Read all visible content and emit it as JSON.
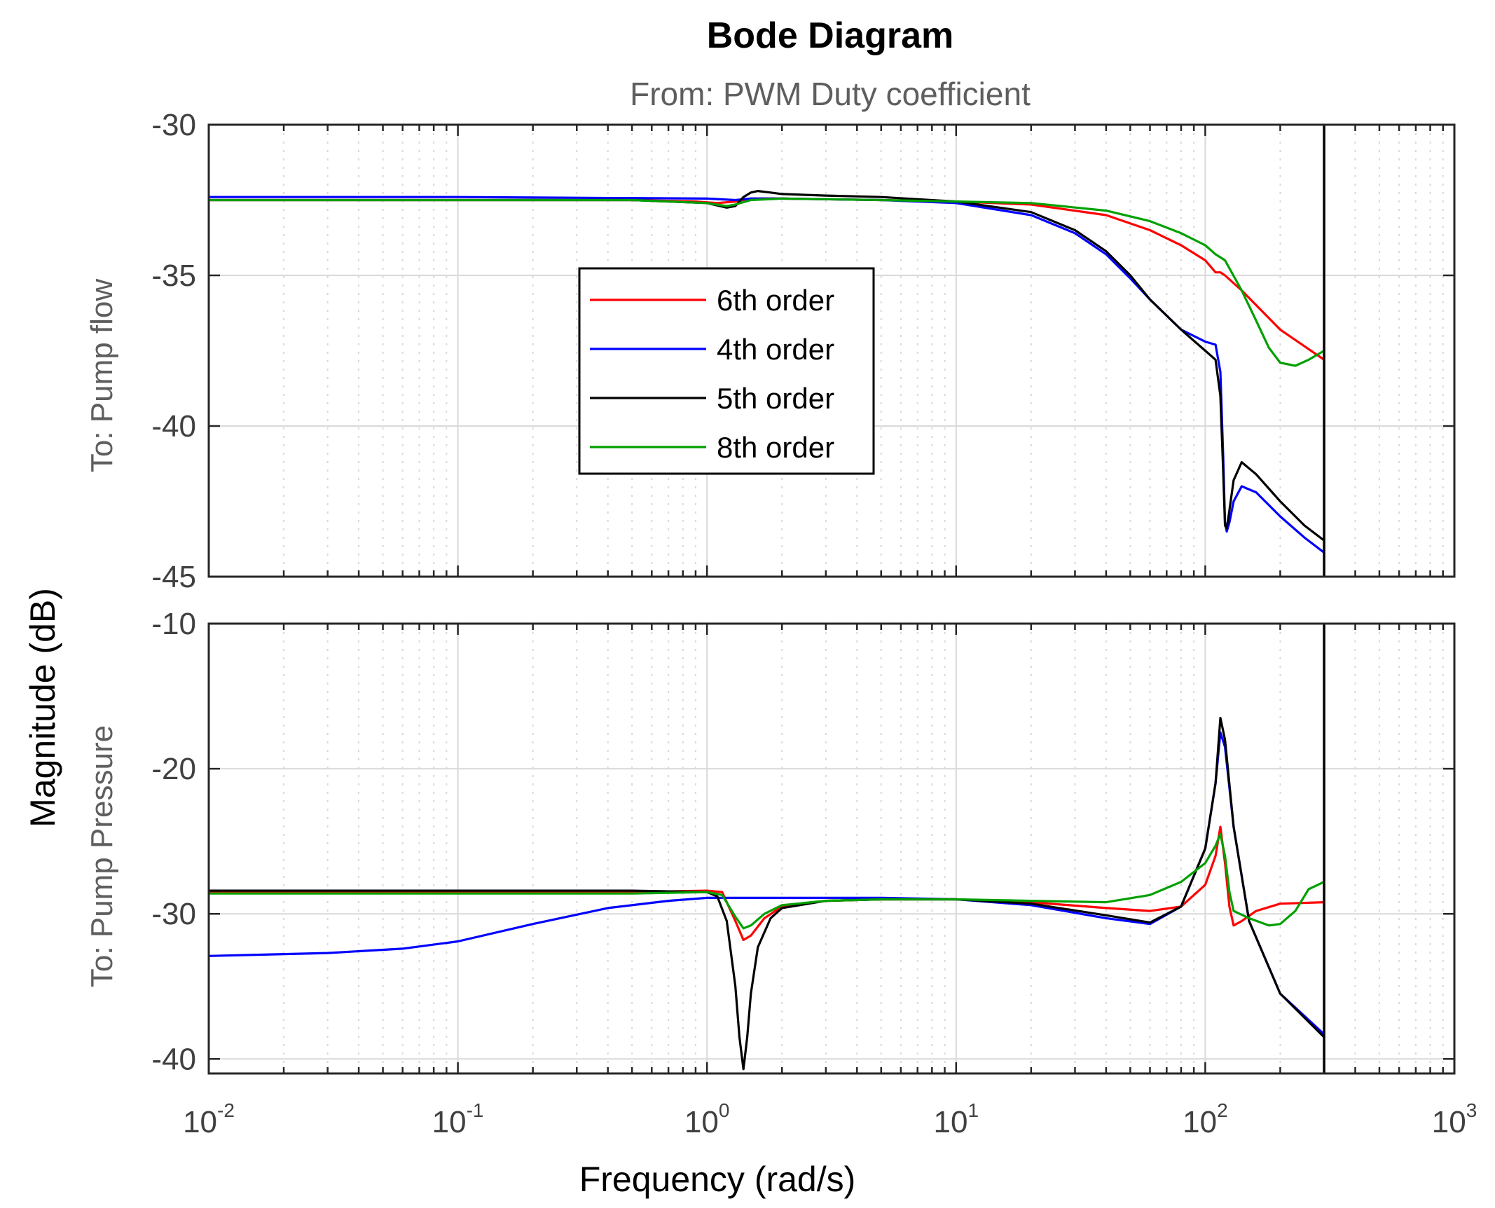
{
  "chart_data": {
    "type": "line",
    "title": "Bode Diagram",
    "subtitle": "From: PWM Duty coefficient",
    "xlabel": "Frequency  (rad/s)",
    "ylabel": "Magnitude (dB)",
    "xscale": "log",
    "xlim": [
      0.01,
      1000
    ],
    "x_ticks": [
      {
        "base": "10",
        "exp": "-2",
        "value": 0.01
      },
      {
        "base": "10",
        "exp": "-1",
        "value": 0.1
      },
      {
        "base": "10",
        "exp": "0",
        "value": 1
      },
      {
        "base": "10",
        "exp": "1",
        "value": 10
      },
      {
        "base": "10",
        "exp": "2",
        "value": 100
      },
      {
        "base": "10",
        "exp": "3",
        "value": 1000
      }
    ],
    "nyquist_frequency": 300,
    "grid": true,
    "legend": {
      "placement": "center-left of top panel",
      "entries": [
        {
          "label": "6th order",
          "color": "#ff0000"
        },
        {
          "label": "4th order",
          "color": "#0000ff"
        },
        {
          "label": "5th order",
          "color": "#000000"
        },
        {
          "label": "8th order",
          "color": "#00a000"
        }
      ]
    },
    "panels": [
      {
        "row_label": "To: Pump flow",
        "ylim": [
          -45,
          -30
        ],
        "y_ticks": [
          "-30",
          "-35",
          "-40",
          "-45"
        ],
        "series": [
          {
            "name": "6th order",
            "color": "#ff0000",
            "x": [
              0.01,
              0.1,
              0.5,
              0.9,
              1.1,
              1.3,
              1.5,
              2,
              5,
              10,
              20,
              40,
              60,
              80,
              100,
              110,
              115,
              120,
              140,
              200,
              300
            ],
            "y": [
              -32.5,
              -32.5,
              -32.5,
              -32.55,
              -32.6,
              -32.55,
              -32.45,
              -32.45,
              -32.5,
              -32.55,
              -32.65,
              -33.0,
              -33.5,
              -34.0,
              -34.5,
              -34.9,
              -34.9,
              -35.0,
              -35.5,
              -36.8,
              -37.8
            ]
          },
          {
            "name": "4th order",
            "color": "#0000ff",
            "x": [
              0.01,
              0.1,
              1,
              1.3,
              1.5,
              2,
              5,
              10,
              20,
              30,
              40,
              50,
              60,
              80,
              100,
              110,
              115,
              118,
              120,
              122,
              125,
              130,
              140,
              160,
              200,
              250,
              300
            ],
            "y": [
              -32.4,
              -32.4,
              -32.45,
              -32.5,
              -32.45,
              -32.45,
              -32.5,
              -32.6,
              -33.0,
              -33.6,
              -34.3,
              -35.1,
              -35.8,
              -36.8,
              -37.2,
              -37.3,
              -38.2,
              -41.0,
              -43.2,
              -43.5,
              -43.2,
              -42.5,
              -42.0,
              -42.2,
              -43.0,
              -43.7,
              -44.2
            ]
          },
          {
            "name": "5th order",
            "color": "#000000",
            "x": [
              0.01,
              0.1,
              0.5,
              1,
              1.2,
              1.3,
              1.4,
              1.5,
              1.6,
              1.8,
              2,
              3,
              5,
              10,
              20,
              30,
              40,
              50,
              60,
              80,
              100,
              110,
              115,
              118,
              120,
              122,
              125,
              130,
              140,
              160,
              200,
              250,
              300
            ],
            "y": [
              -32.5,
              -32.5,
              -32.5,
              -32.6,
              -32.75,
              -32.7,
              -32.4,
              -32.25,
              -32.2,
              -32.25,
              -32.3,
              -32.35,
              -32.4,
              -32.55,
              -32.9,
              -33.5,
              -34.2,
              -35.0,
              -35.8,
              -36.8,
              -37.5,
              -37.8,
              -39.0,
              -41.5,
              -43.3,
              -43.4,
              -42.8,
              -41.8,
              -41.2,
              -41.6,
              -42.5,
              -43.3,
              -43.8
            ]
          },
          {
            "name": "8th order",
            "color": "#00a000",
            "x": [
              0.01,
              0.1,
              0.5,
              1,
              1.2,
              1.3,
              1.5,
              2,
              5,
              10,
              20,
              40,
              60,
              80,
              100,
              110,
              120,
              140,
              160,
              180,
              200,
              230,
              260,
              300
            ],
            "y": [
              -32.5,
              -32.5,
              -32.5,
              -32.6,
              -32.7,
              -32.65,
              -32.5,
              -32.45,
              -32.5,
              -32.55,
              -32.6,
              -32.85,
              -33.2,
              -33.6,
              -34.0,
              -34.3,
              -34.5,
              -35.5,
              -36.5,
              -37.4,
              -37.9,
              -38.0,
              -37.8,
              -37.5
            ]
          }
        ]
      },
      {
        "row_label": "To: Pump Pressure",
        "ylim": [
          -41,
          -10
        ],
        "y_ticks": [
          "-10",
          "-20",
          "-30",
          "-40"
        ],
        "series": [
          {
            "name": "6th order",
            "color": "#ff0000",
            "x": [
              0.01,
              0.1,
              0.5,
              1,
              1.15,
              1.3,
              1.4,
              1.5,
              1.7,
              2,
              3,
              5,
              10,
              20,
              40,
              60,
              80,
              100,
              110,
              115,
              120,
              125,
              130,
              140,
              160,
              200,
              300
            ],
            "y": [
              -28.5,
              -28.5,
              -28.5,
              -28.4,
              -28.5,
              -30.5,
              -31.8,
              -31.5,
              -30.3,
              -29.5,
              -29.1,
              -29.0,
              -29.0,
              -29.2,
              -29.6,
              -29.8,
              -29.5,
              -28.0,
              -26.0,
              -24.0,
              -26.5,
              -29.5,
              -30.8,
              -30.5,
              -29.8,
              -29.3,
              -29.2
            ]
          },
          {
            "name": "4th order",
            "color": "#0000ff",
            "x": [
              0.01,
              0.03,
              0.06,
              0.1,
              0.2,
              0.4,
              0.7,
              1,
              2,
              5,
              10,
              20,
              40,
              60,
              80,
              100,
              110,
              115,
              120,
              130,
              150,
              200,
              300
            ],
            "y": [
              -32.9,
              -32.7,
              -32.4,
              -31.9,
              -30.7,
              -29.6,
              -29.1,
              -28.9,
              -28.9,
              -28.9,
              -29.0,
              -29.4,
              -30.3,
              -30.7,
              -29.5,
              -25.5,
              -21.0,
              -17.5,
              -18.5,
              -24.0,
              -30.5,
              -35.5,
              -38.3
            ]
          },
          {
            "name": "5th order",
            "color": "#000000",
            "x": [
              0.01,
              0.1,
              0.5,
              1,
              1.1,
              1.2,
              1.3,
              1.35,
              1.4,
              1.45,
              1.5,
              1.6,
              1.8,
              2,
              3,
              5,
              10,
              20,
              40,
              60,
              80,
              100,
              110,
              115,
              120,
              130,
              150,
              200,
              300
            ],
            "y": [
              -28.4,
              -28.4,
              -28.4,
              -28.5,
              -28.8,
              -30.5,
              -35.0,
              -38.5,
              -40.7,
              -38.5,
              -35.5,
              -32.3,
              -30.3,
              -29.6,
              -29.1,
              -29.0,
              -29.0,
              -29.3,
              -30.1,
              -30.6,
              -29.5,
              -25.5,
              -21.0,
              -16.5,
              -18.0,
              -24.0,
              -30.5,
              -35.5,
              -38.5
            ]
          },
          {
            "name": "8th order",
            "color": "#00a000",
            "x": [
              0.01,
              0.1,
              0.5,
              1,
              1.15,
              1.3,
              1.4,
              1.5,
              1.7,
              2,
              3,
              5,
              10,
              20,
              40,
              60,
              80,
              100,
              110,
              115,
              120,
              125,
              130,
              150,
              180,
              200,
              230,
              260,
              300
            ],
            "y": [
              -28.6,
              -28.6,
              -28.6,
              -28.5,
              -28.7,
              -30.2,
              -31.0,
              -30.8,
              -30.0,
              -29.4,
              -29.1,
              -29.0,
              -29.0,
              -29.1,
              -29.2,
              -28.7,
              -27.8,
              -26.5,
              -25.3,
              -24.5,
              -26.0,
              -28.5,
              -29.8,
              -30.3,
              -30.8,
              -30.7,
              -29.8,
              -28.3,
              -27.8
            ]
          }
        ]
      }
    ]
  }
}
